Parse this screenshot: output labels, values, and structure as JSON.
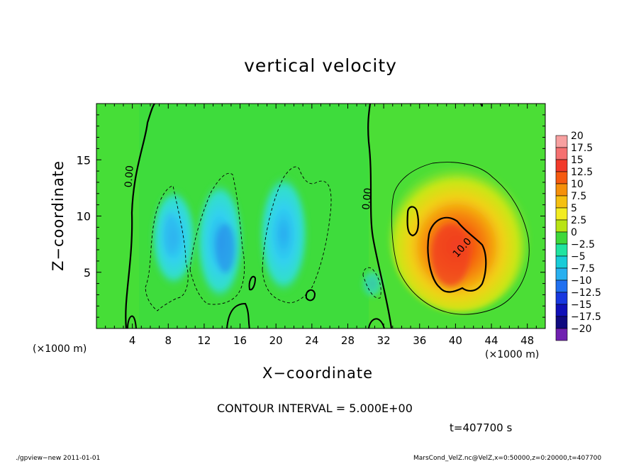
{
  "title": "vertical velocity",
  "xlabel": "X−coordinate",
  "ylabel": "Z−coordinate",
  "x_unit_left": "(×1000 m)",
  "x_unit_right": "(×1000 m)",
  "contour_interval": "CONTOUR INTERVAL = 5.000E+00",
  "time_label": "t=407700  s",
  "footer_left": "./gpview−new   2011-01-01",
  "footer_right": "MarsCond_VelZ.nc@VelZ,x=0:50000,z=0:20000,t=407700",
  "chart_data": {
    "type": "heatmap",
    "title": "vertical velocity",
    "xlabel": "X−coordinate",
    "ylabel": "Z−coordinate",
    "x_units": "×1000 m",
    "xlim": [
      0,
      50
    ],
    "ylim": [
      0,
      20
    ],
    "x_ticks": [
      4,
      8,
      12,
      16,
      20,
      24,
      28,
      32,
      36,
      40,
      44,
      48
    ],
    "y_ticks": [
      5,
      10,
      15
    ],
    "contour_labels": [
      {
        "text": "0.00",
        "x": 4,
        "z": 13.5
      },
      {
        "text": "0.00",
        "x": 30.5,
        "z": 11.5
      },
      {
        "text": "10.0",
        "x": 41,
        "z": 7
      }
    ],
    "colorbar": {
      "labels": [
        "20",
        "17.5",
        "15",
        "12.5",
        "10",
        "7.5",
        "5",
        "2.5",
        "0",
        "−2.5",
        "−5",
        "−7.5",
        "−10",
        "−12.5",
        "−15",
        "−17.5",
        "−20"
      ],
      "colors": [
        "#f7a0a0",
        "#f57070",
        "#f23a2a",
        "#f55a10",
        "#f5900a",
        "#f5c010",
        "#f2ec20",
        "#b8e414",
        "#3ed83a",
        "#20e4a0",
        "#18ccd8",
        "#28b0f0",
        "#2070f0",
        "#1838e0",
        "#1010b8",
        "#100a80",
        "#7020b0"
      ]
    },
    "features": [
      {
        "kind": "updraft",
        "max": 15,
        "x": 39.5,
        "z": 6.5
      },
      {
        "kind": "downdraft",
        "min": -7.5,
        "x": 14.5,
        "z": 7.5
      },
      {
        "kind": "downdraft",
        "min": -5,
        "x": 8.5,
        "z": 8
      },
      {
        "kind": "downdraft",
        "min": -5,
        "x": 21.5,
        "z": 8.5
      }
    ]
  }
}
